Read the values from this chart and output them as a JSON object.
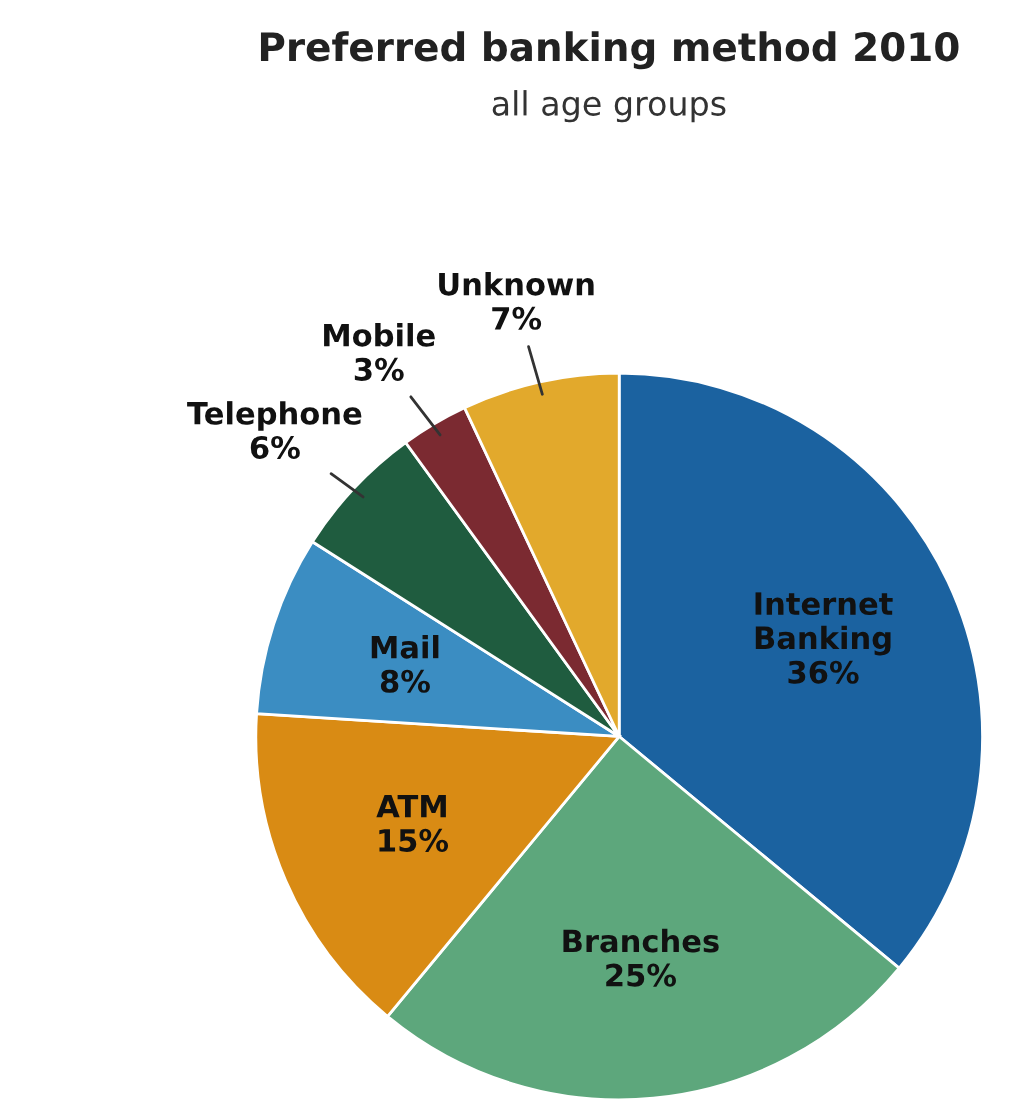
{
  "chart_data": {
    "type": "pie",
    "title": "Preferred banking method 2010",
    "subtitle": "all age groups",
    "categories": [
      "Internet Banking",
      "Branches",
      "ATM",
      "Mail",
      "Telephone",
      "Mobile",
      "Unknown"
    ],
    "values": [
      36,
      25,
      15,
      8,
      6,
      3,
      7
    ],
    "value_labels": [
      "36%",
      "25%",
      "15%",
      "8%",
      "6%",
      "3%",
      "7%"
    ],
    "colors": [
      "#1b62a0",
      "#5da77c",
      "#d98b14",
      "#3b8dc2",
      "#1f5c3f",
      "#7b2a31",
      "#e2a92c"
    ],
    "legend": false
  }
}
